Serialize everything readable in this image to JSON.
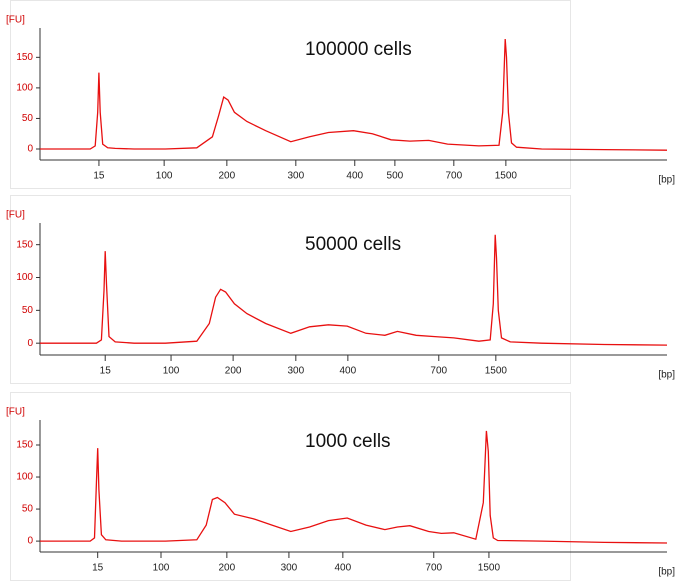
{
  "chart_data": [
    {
      "type": "line",
      "title": "100000 cells",
      "xlabel": "[bp]",
      "ylabel": "[FU]",
      "color": "#e81010",
      "xlim": [
        0,
        100
      ],
      "ylim": [
        -18,
        198
      ],
      "xticks": [
        {
          "value": 9.4,
          "label": "15"
        },
        {
          "value": 19.8,
          "label": "100"
        },
        {
          "value": 29.8,
          "label": "200"
        },
        {
          "value": 40.8,
          "label": "300"
        },
        {
          "value": 50.2,
          "label": "400"
        },
        {
          "value": 56.6,
          "label": "500"
        },
        {
          "value": 66,
          "label": "700"
        },
        {
          "value": 74.3,
          "label": "1500"
        }
      ],
      "yticks": [
        0,
        50,
        100,
        150
      ],
      "x": [
        0,
        8.0,
        8.8,
        9.2,
        9.4,
        9.6,
        10.0,
        10.8,
        12,
        15,
        20,
        25,
        27.5,
        28.5,
        29.3,
        30,
        31,
        33,
        36,
        40,
        43,
        46,
        50,
        53,
        56,
        59,
        62,
        65,
        70,
        73.2,
        73.8,
        74.2,
        74.4,
        74.7,
        75.2,
        76,
        80,
        90,
        100
      ],
      "values": [
        0,
        0,
        5,
        60,
        125,
        60,
        8,
        2,
        1,
        0,
        0,
        2,
        20,
        55,
        85,
        80,
        60,
        45,
        30,
        12,
        20,
        27,
        30,
        25,
        15,
        13,
        14,
        8,
        5,
        6,
        60,
        180,
        150,
        60,
        10,
        3,
        0,
        -1,
        -2
      ]
    },
    {
      "type": "line",
      "title": "50000 cells",
      "xlabel": "[bp]",
      "ylabel": "[FU]",
      "color": "#e81010",
      "xlim": [
        0,
        100
      ],
      "ylim": [
        -18,
        183
      ],
      "xticks": [
        {
          "value": 10.4,
          "label": "15"
        },
        {
          "value": 20.9,
          "label": "100"
        },
        {
          "value": 30.8,
          "label": "200"
        },
        {
          "value": 40.8,
          "label": "300"
        },
        {
          "value": 49.1,
          "label": "400"
        },
        {
          "value": 63.6,
          "label": "700"
        },
        {
          "value": 72.7,
          "label": "1500"
        }
      ],
      "yticks": [
        0,
        50,
        100,
        150
      ],
      "x": [
        0,
        9,
        9.8,
        10.2,
        10.4,
        10.6,
        11,
        12,
        15,
        20,
        25,
        27,
        28,
        28.8,
        29.6,
        31,
        33,
        36,
        40,
        43,
        46,
        49,
        52,
        55,
        57,
        60,
        63,
        66,
        70,
        71.8,
        72.3,
        72.6,
        72.8,
        73.1,
        73.6,
        75,
        80,
        90,
        100
      ],
      "values": [
        0,
        0,
        5,
        80,
        140,
        90,
        10,
        2,
        0,
        0,
        3,
        30,
        70,
        82,
        78,
        60,
        45,
        30,
        15,
        25,
        28,
        26,
        15,
        12,
        18,
        12,
        10,
        8,
        3,
        5,
        60,
        165,
        130,
        50,
        8,
        2,
        0,
        -2,
        -3
      ]
    },
    {
      "type": "line",
      "title": "1000 cells",
      "xlabel": "[bp]",
      "ylabel": "[FU]",
      "color": "#e81010",
      "xlim": [
        0,
        100
      ],
      "ylim": [
        -17,
        189
      ],
      "xticks": [
        {
          "value": 9.2,
          "label": "15"
        },
        {
          "value": 19.3,
          "label": "100"
        },
        {
          "value": 29.8,
          "label": "200"
        },
        {
          "value": 39.7,
          "label": "300"
        },
        {
          "value": 48.3,
          "label": "400"
        },
        {
          "value": 62.8,
          "label": "700"
        },
        {
          "value": 71.6,
          "label": "1500"
        }
      ],
      "yticks": [
        0,
        50,
        100,
        150
      ],
      "x": [
        0,
        8,
        8.7,
        9.0,
        9.2,
        9.4,
        9.8,
        10.5,
        13,
        20,
        25,
        26.5,
        27.5,
        28.3,
        29.5,
        31,
        34,
        37,
        40,
        43,
        46,
        49,
        52,
        55,
        57,
        59,
        62,
        64,
        66,
        69.5,
        70.7,
        71.2,
        71.5,
        71.8,
        72.3,
        73,
        80,
        90,
        100
      ],
      "values": [
        0,
        0,
        5,
        90,
        145,
        80,
        10,
        2,
        0,
        0,
        2,
        25,
        65,
        68,
        60,
        42,
        35,
        25,
        15,
        22,
        32,
        36,
        25,
        18,
        22,
        24,
        15,
        12,
        13,
        3,
        60,
        172,
        140,
        40,
        5,
        1,
        0,
        -2,
        -3
      ]
    }
  ]
}
